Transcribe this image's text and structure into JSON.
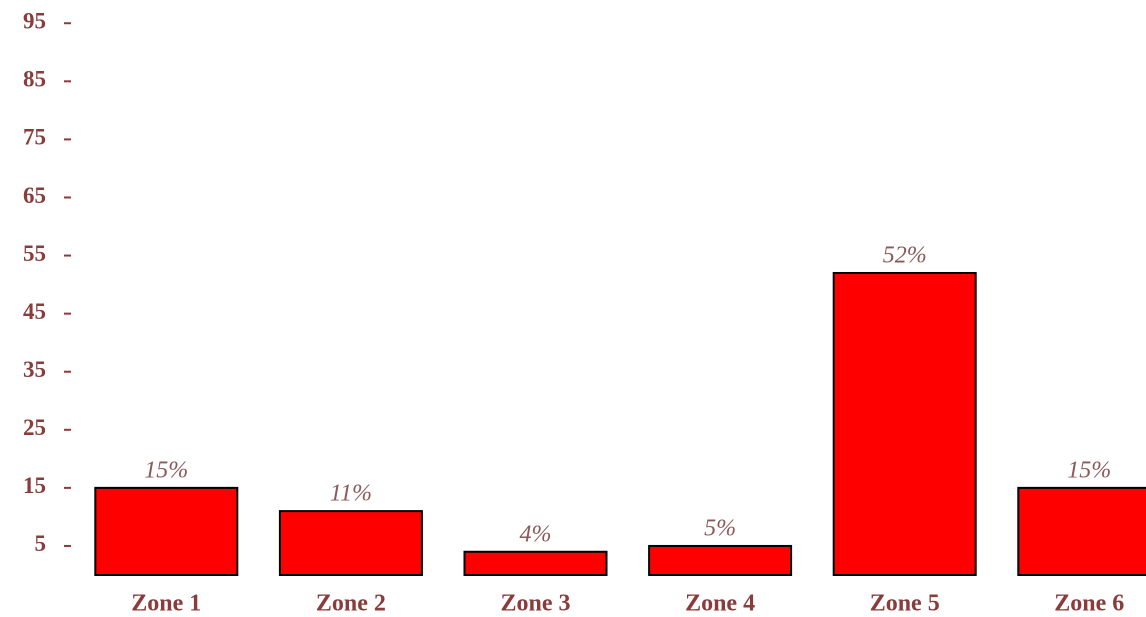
{
  "chart_data": {
    "type": "bar",
    "categories": [
      "Zone 1",
      "Zone 2",
      "Zone 3",
      "Zone 4",
      "Zone 5",
      "Zone 6"
    ],
    "values": [
      15,
      11,
      4,
      5,
      52,
      15
    ],
    "value_labels": [
      "15%",
      "11%",
      "4%",
      "5%",
      "52%",
      "15%"
    ],
    "color": "#ff0000",
    "ylim": [
      0,
      99
    ],
    "yticks": [
      5,
      15,
      25,
      35,
      45,
      55,
      65,
      75,
      85,
      95
    ],
    "grid": false
  }
}
